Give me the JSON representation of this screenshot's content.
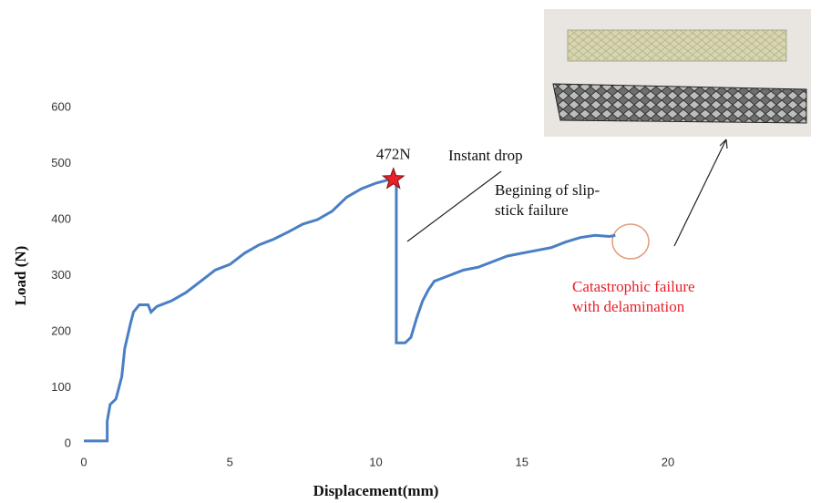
{
  "chart_data": {
    "type": "line",
    "x_label": "Displacement(mm)",
    "y_label": "Load (N)",
    "xlim": [
      0,
      20
    ],
    "xticks": [
      0,
      5,
      10,
      15,
      20
    ],
    "ylim": [
      0,
      600
    ],
    "yticks": [
      0,
      100,
      200,
      300,
      400,
      500,
      600
    ],
    "color": "#4a7fc4",
    "x": [
      0,
      0.8,
      0.8,
      0.9,
      1.1,
      1.2,
      1.3,
      1.4,
      1.6,
      1.7,
      1.9,
      2.2,
      2.3,
      2.5,
      3,
      3.5,
      4,
      4.5,
      5,
      5.5,
      6,
      6.5,
      7,
      7.5,
      8,
      8.5,
      9,
      9.5,
      10,
      10.5,
      10.7,
      10.7,
      11,
      11.2,
      11.4,
      11.6,
      11.8,
      12,
      12.5,
      13,
      13.5,
      14,
      14.5,
      15,
      15.5,
      16,
      16.5,
      17,
      17.5,
      18,
      18.2
    ],
    "values": [
      5,
      5,
      40,
      70,
      80,
      100,
      120,
      170,
      215,
      235,
      248,
      248,
      235,
      245,
      255,
      270,
      290,
      310,
      320,
      340,
      355,
      365,
      378,
      392,
      400,
      415,
      440,
      455,
      465,
      472,
      472,
      180,
      180,
      190,
      225,
      255,
      275,
      290,
      300,
      310,
      315,
      325,
      335,
      340,
      345,
      350,
      360,
      368,
      372,
      370,
      372
    ],
    "peak": {
      "x": 10.6,
      "value": 472,
      "label": "472N",
      "color": "#e8202a"
    },
    "annotations": [
      {
        "lines": [
          "Instant drop"
        ]
      },
      {
        "lines": [
          "Begining of slip-",
          "stick failure"
        ]
      },
      {
        "lines": [
          "Catastrophic failure",
          "with delamination"
        ]
      }
    ]
  }
}
